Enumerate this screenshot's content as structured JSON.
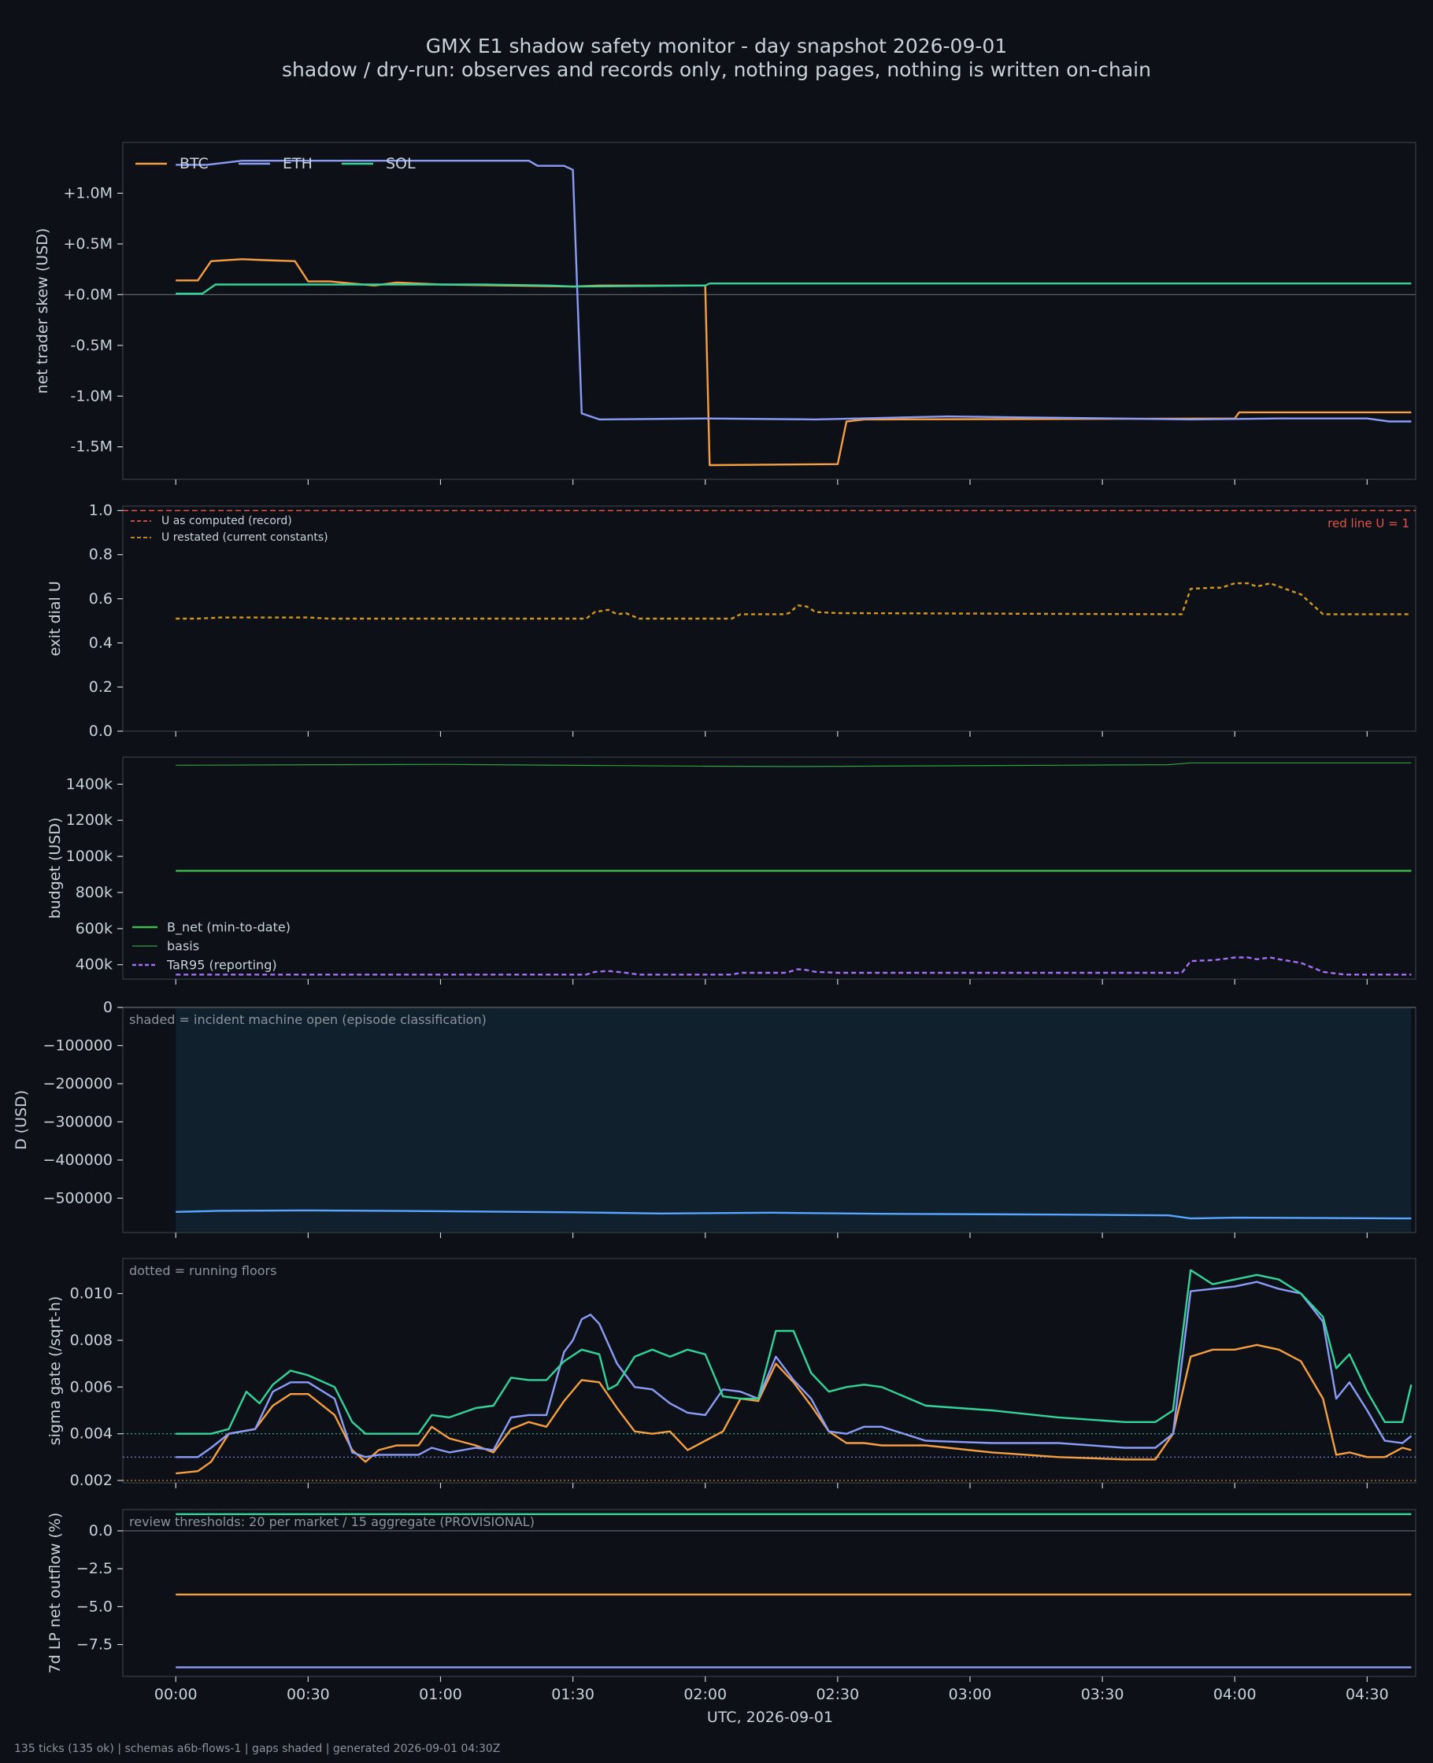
{
  "header": {
    "title": "GMX E1 shadow safety monitor - day snapshot 2026-09-01",
    "subtitle": "shadow / dry-run: observes and records only, nothing pages, nothing is written on-chain"
  },
  "footer": "135 ticks (135 ok) | schemas a6b-flows-1 | gaps shaded | generated 2026-09-01 04:30Z",
  "colors": {
    "background": "#0d1117",
    "panel": "#0d1117",
    "frame": "#30363d",
    "text": "#c9d1d9",
    "btc": "#f59e42",
    "eth": "#8b9cf7",
    "sol": "#34d399",
    "redline": "#e5534b",
    "u": "#f0883e",
    "bnet": "#3fb950",
    "basis": "#2ea043",
    "tar95": "#a371f7",
    "d": "#58a6ff",
    "shade": "#10202c"
  },
  "chart_data": [
    {
      "type": "line",
      "id": "skew",
      "ylabel": "net trader skew (USD)",
      "ylim": [
        -1.82,
        1.5
      ],
      "yticks": [
        1.0,
        0.5,
        0.0,
        -0.5,
        -1.0,
        -1.5
      ],
      "ytick_labels": [
        "+1.0M",
        "+0.5M",
        "+0.0M",
        "-0.5M",
        "-1.0M",
        "-1.5M"
      ],
      "zero_line": true,
      "legend": "top-left-row",
      "series": [
        {
          "name": "BTC",
          "color": "#f59e42",
          "x": [
            0,
            5,
            8,
            15,
            20,
            27,
            30,
            35,
            45,
            50,
            55,
            60,
            90,
            96,
            105,
            120,
            121,
            150,
            152,
            156,
            160,
            240,
            241,
            280
          ],
          "y": [
            0.14,
            0.14,
            0.33,
            0.35,
            0.34,
            0.33,
            0.13,
            0.13,
            0.09,
            0.12,
            0.11,
            0.1,
            0.08,
            0.09,
            0.09,
            0.09,
            -1.68,
            -1.67,
            -1.25,
            -1.23,
            -1.23,
            -1.22,
            -1.16,
            -1.16
          ]
        },
        {
          "name": "ETH",
          "color": "#8b9cf7",
          "x": [
            0,
            7,
            15,
            80,
            82,
            88,
            90,
            92,
            96,
            120,
            145,
            175,
            230,
            250,
            270,
            275,
            280
          ],
          "y": [
            1.28,
            1.28,
            1.32,
            1.32,
            1.27,
            1.27,
            1.23,
            -1.17,
            -1.23,
            -1.22,
            -1.23,
            -1.2,
            -1.23,
            -1.22,
            -1.22,
            -1.25,
            -1.25
          ]
        },
        {
          "name": "SOL",
          "color": "#34d399",
          "x": [
            0,
            6,
            9,
            30,
            50,
            70,
            85,
            90,
            120,
            121,
            280
          ],
          "y": [
            0.01,
            0.01,
            0.1,
            0.1,
            0.1,
            0.1,
            0.09,
            0.08,
            0.09,
            0.11,
            0.11
          ]
        }
      ]
    },
    {
      "type": "line",
      "id": "exit",
      "ylabel": "exit dial U",
      "ylim": [
        0.0,
        1.02
      ],
      "yticks": [
        0.0,
        0.2,
        0.4,
        0.6,
        0.8,
        1.0
      ],
      "ytick_labels": [
        "0.0",
        "0.2",
        "0.4",
        "0.6",
        "0.8",
        "1.0"
      ],
      "redline": {
        "y": 1.0,
        "label": "red line U = 1"
      },
      "legend": "top-left",
      "series": [
        {
          "name": "U as computed (record)",
          "color": "#e5534b",
          "dash": "6,4",
          "x": [],
          "y": []
        },
        {
          "name": "U restated (current constants)",
          "color": "#d29922",
          "dash": "5,4",
          "x": [
            0,
            5,
            10,
            30,
            35,
            93,
            95,
            98,
            100,
            102,
            105,
            126,
            128,
            138,
            139,
            141,
            143,
            145,
            150,
            225,
            228,
            230,
            235,
            237,
            240,
            243,
            245,
            248,
            250,
            255,
            260,
            265,
            280
          ],
          "y": [
            0.51,
            0.51,
            0.515,
            0.515,
            0.51,
            0.51,
            0.54,
            0.55,
            0.53,
            0.535,
            0.51,
            0.51,
            0.53,
            0.53,
            0.535,
            0.57,
            0.565,
            0.54,
            0.535,
            0.53,
            0.53,
            0.645,
            0.65,
            0.65,
            0.67,
            0.67,
            0.655,
            0.67,
            0.655,
            0.62,
            0.53,
            0.53,
            0.53
          ]
        }
      ]
    },
    {
      "type": "line",
      "id": "budget",
      "ylabel": "budget (USD)",
      "ylim": [
        320,
        1550
      ],
      "yticks": [
        400,
        600,
        800,
        1000,
        1200,
        1400
      ],
      "ytick_labels": [
        "400k",
        "600k",
        "800k",
        "1000k",
        "1200k",
        "1400k"
      ],
      "legend": "bottom-left",
      "series": [
        {
          "name": "B_net (min-to-date)",
          "color": "#3fb950",
          "x": [
            0,
            280
          ],
          "y": [
            920,
            920
          ]
        },
        {
          "name": "basis",
          "color": "#2ea043",
          "thin": true,
          "x": [
            0,
            60,
            120,
            140,
            200,
            225,
            230,
            280
          ],
          "y": [
            1505,
            1510,
            1500,
            1498,
            1505,
            1508,
            1518,
            1518
          ]
        },
        {
          "name": "TaR95 (reporting)",
          "color": "#a371f7",
          "dash": "6,4",
          "x": [
            0,
            5,
            30,
            93,
            95,
            98,
            100,
            102,
            105,
            126,
            128,
            138,
            139,
            141,
            143,
            145,
            150,
            225,
            228,
            230,
            235,
            237,
            240,
            243,
            245,
            248,
            250,
            255,
            260,
            265,
            280
          ],
          "y": [
            345,
            345,
            345,
            345,
            360,
            365,
            360,
            355,
            345,
            345,
            355,
            355,
            360,
            375,
            370,
            360,
            355,
            355,
            355,
            420,
            425,
            430,
            440,
            440,
            430,
            440,
            430,
            410,
            360,
            345,
            345
          ]
        }
      ]
    },
    {
      "type": "area",
      "id": "d",
      "ylabel": "D (USD)",
      "ylim": [
        -590000,
        0
      ],
      "yticks": [
        0,
        -100000,
        -200000,
        -300000,
        -400000,
        -500000
      ],
      "ytick_labels": [
        "0",
        "−100000",
        "−200000",
        "−300000",
        "−400000",
        "−500000"
      ],
      "zero_line": true,
      "annotation": "shaded = incident machine open (episode classification)",
      "shade_range": [
        0,
        280
      ],
      "series": [
        {
          "name": "",
          "color": "#58a6ff",
          "x": [
            0,
            10,
            30,
            60,
            90,
            110,
            135,
            160,
            200,
            225,
            230,
            240,
            260,
            280
          ],
          "y": [
            -536000,
            -533000,
            -532000,
            -534000,
            -537000,
            -540000,
            -538000,
            -541000,
            -543000,
            -545000,
            -553000,
            -551000,
            -552000,
            -553000
          ]
        }
      ]
    },
    {
      "type": "line",
      "id": "sigma",
      "ylabel": "sigma gate (/sqrt-h)",
      "ylim": [
        0.0019,
        0.0115
      ],
      "yticks": [
        0.002,
        0.004,
        0.006,
        0.008,
        0.01
      ],
      "ytick_labels": [
        "0.002",
        "0.004",
        "0.006",
        "0.008",
        "0.010"
      ],
      "annotation": "dotted = running floors",
      "floors": [
        {
          "y": 0.004,
          "color": "#34d399"
        },
        {
          "y": 0.003,
          "color": "#8b9cf7"
        },
        {
          "y": 0.002,
          "color": "#f59e42"
        }
      ],
      "series": [
        {
          "name": "BTC",
          "color": "#f59e42",
          "x": [
            0,
            5,
            8,
            12,
            18,
            22,
            26,
            30,
            36,
            40,
            43,
            46,
            50,
            55,
            58,
            62,
            68,
            72,
            76,
            80,
            84,
            88,
            92,
            96,
            100,
            104,
            108,
            112,
            116,
            120,
            124,
            128,
            132,
            136,
            140,
            144,
            148,
            152,
            156,
            160,
            170,
            185,
            200,
            215,
            222,
            226,
            230,
            235,
            240,
            245,
            250,
            255,
            260,
            263,
            266,
            270,
            274,
            278,
            280
          ],
          "y": [
            0.0023,
            0.0024,
            0.0028,
            0.004,
            0.0042,
            0.0052,
            0.0057,
            0.0057,
            0.0048,
            0.0033,
            0.0028,
            0.0033,
            0.0035,
            0.0035,
            0.0043,
            0.0038,
            0.0035,
            0.0032,
            0.0042,
            0.0045,
            0.0043,
            0.0054,
            0.0063,
            0.0062,
            0.0051,
            0.0041,
            0.004,
            0.0041,
            0.0033,
            0.0037,
            0.0041,
            0.0055,
            0.0054,
            0.007,
            0.0062,
            0.0052,
            0.0041,
            0.0036,
            0.0036,
            0.0035,
            0.0035,
            0.0032,
            0.003,
            0.0029,
            0.0029,
            0.004,
            0.0073,
            0.0076,
            0.0076,
            0.0078,
            0.0076,
            0.0071,
            0.0055,
            0.0031,
            0.0032,
            0.003,
            0.003,
            0.0034,
            0.0033
          ]
        },
        {
          "name": "ETH",
          "color": "#8b9cf7",
          "x": [
            0,
            5,
            8,
            12,
            18,
            22,
            26,
            30,
            36,
            40,
            43,
            46,
            50,
            55,
            58,
            62,
            68,
            72,
            76,
            80,
            84,
            88,
            90,
            92,
            94,
            96,
            100,
            104,
            108,
            112,
            116,
            120,
            124,
            128,
            132,
            136,
            140,
            144,
            148,
            152,
            156,
            160,
            170,
            185,
            200,
            215,
            222,
            226,
            230,
            235,
            240,
            245,
            250,
            255,
            260,
            263,
            266,
            270,
            274,
            278,
            280
          ],
          "y": [
            0.003,
            0.003,
            0.0034,
            0.004,
            0.0042,
            0.0058,
            0.0062,
            0.0062,
            0.0055,
            0.0032,
            0.003,
            0.0031,
            0.0031,
            0.0031,
            0.0034,
            0.0032,
            0.0034,
            0.0033,
            0.0047,
            0.0048,
            0.0048,
            0.0075,
            0.008,
            0.0089,
            0.0091,
            0.0087,
            0.007,
            0.006,
            0.0059,
            0.0053,
            0.0049,
            0.0048,
            0.0059,
            0.0058,
            0.0055,
            0.0073,
            0.0063,
            0.0055,
            0.0041,
            0.004,
            0.0043,
            0.0043,
            0.0037,
            0.0036,
            0.0036,
            0.0034,
            0.0034,
            0.004,
            0.0101,
            0.0102,
            0.0103,
            0.0105,
            0.0102,
            0.01,
            0.0088,
            0.0055,
            0.0062,
            0.005,
            0.0037,
            0.0036,
            0.0039
          ]
        },
        {
          "name": "SOL",
          "color": "#34d399",
          "x": [
            0,
            5,
            8,
            12,
            16,
            19,
            22,
            26,
            30,
            36,
            40,
            43,
            46,
            50,
            55,
            58,
            62,
            68,
            72,
            76,
            80,
            84,
            88,
            92,
            96,
            98,
            100,
            104,
            108,
            112,
            116,
            120,
            124,
            128,
            132,
            136,
            140,
            144,
            148,
            152,
            156,
            160,
            170,
            185,
            200,
            215,
            222,
            226,
            230,
            235,
            240,
            245,
            250,
            255,
            260,
            263,
            266,
            270,
            274,
            278,
            280
          ],
          "y": [
            0.004,
            0.004,
            0.004,
            0.0042,
            0.0058,
            0.0053,
            0.0061,
            0.0067,
            0.0065,
            0.006,
            0.0045,
            0.004,
            0.004,
            0.004,
            0.004,
            0.0048,
            0.0047,
            0.0051,
            0.0052,
            0.0064,
            0.0063,
            0.0063,
            0.0071,
            0.0076,
            0.0074,
            0.0059,
            0.0061,
            0.0073,
            0.0076,
            0.0073,
            0.0076,
            0.0074,
            0.0056,
            0.0055,
            0.0055,
            0.0084,
            0.0084,
            0.0066,
            0.0058,
            0.006,
            0.0061,
            0.006,
            0.0052,
            0.005,
            0.0047,
            0.0045,
            0.0045,
            0.005,
            0.011,
            0.0104,
            0.0106,
            0.0108,
            0.0106,
            0.01,
            0.009,
            0.0068,
            0.0074,
            0.0058,
            0.0045,
            0.0045,
            0.0061
          ]
        }
      ]
    },
    {
      "type": "line",
      "id": "lp",
      "ylabel": "7d LP net outflow (%)",
      "ylim": [
        -9.6,
        1.4
      ],
      "yticks": [
        0.0,
        -2.5,
        -5.0,
        -7.5
      ],
      "ytick_labels": [
        "0.0",
        "−2.5",
        "−5.0",
        "−7.5"
      ],
      "zero_line": true,
      "annotation": "review thresholds: 20 per market / 15 aggregate (PROVISIONAL)",
      "series": [
        {
          "name": "SOL",
          "color": "#34d399",
          "x": [
            0,
            280
          ],
          "y": [
            1.1,
            1.1
          ]
        },
        {
          "name": "BTC",
          "color": "#f59e42",
          "x": [
            0,
            280
          ],
          "y": [
            -4.2,
            -4.2
          ]
        },
        {
          "name": "ETH",
          "color": "#8b9cf7",
          "x": [
            0,
            280
          ],
          "y": [
            -9.0,
            -9.0
          ]
        }
      ]
    }
  ],
  "x_axis": {
    "label": "UTC, 2026-09-01",
    "ticks": [
      0,
      30,
      60,
      90,
      120,
      150,
      180,
      210,
      240,
      270
    ],
    "tick_labels": [
      "00:00",
      "00:30",
      "01:00",
      "01:30",
      "02:00",
      "02:30",
      "03:00",
      "03:30",
      "04:00",
      "04:30"
    ],
    "xlim": [
      -12,
      281
    ]
  }
}
